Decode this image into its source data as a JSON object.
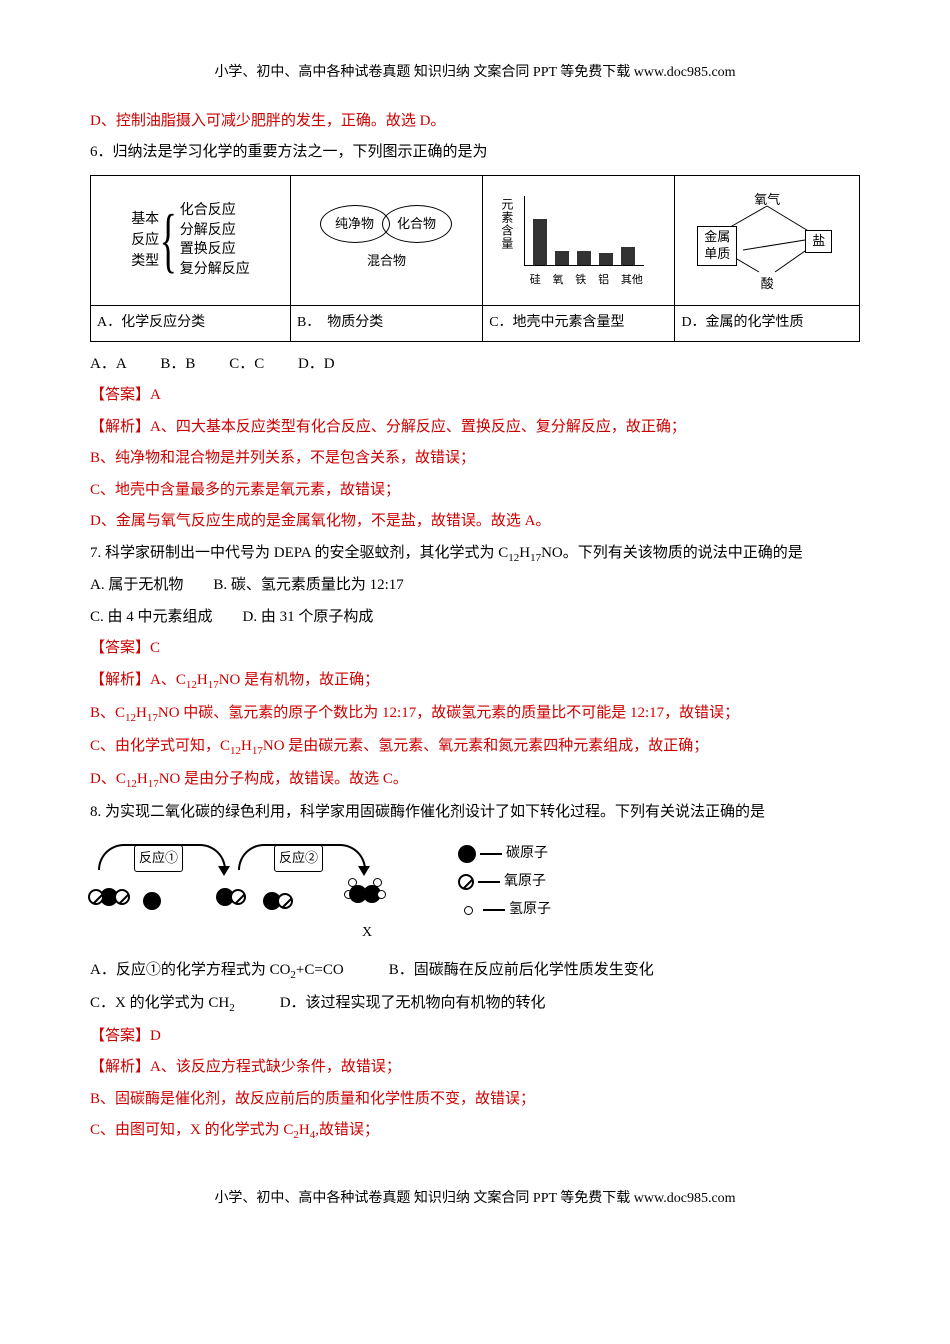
{
  "header": "小学、初中、高中各种试卷真题 知识归纳 文案合同 PPT 等免费下载  www.doc985.com",
  "footer": "小学、初中、高中各种试卷真题 知识归纳 文案合同 PPT 等免费下载  www.doc985.com",
  "q5d": "D、控制油脂摄入可减少肥胖的发生，正确。故选 D。",
  "q6": {
    "stem": "6．归纳法是学习化学的重要方法之一，下列图示正确的是为",
    "row2": {
      "a": "A．化学反应分类",
      "b": "B．　物质分类",
      "c": "C．地壳中元素含量型",
      "d": "D．金属的化学性质"
    },
    "diagA": {
      "left1": "基本",
      "left2": "反应",
      "left3": "类型",
      "r1": "化合反应",
      "r2": "分解反应",
      "r3": "置换反应",
      "r4": "复分解反应"
    },
    "diagB": {
      "oval1": "纯净物",
      "oval2": "化合物",
      "below": "混合物"
    },
    "diagC": {
      "ylabel": "元素含量",
      "bars": [
        {
          "label": "硅",
          "h": 46
        },
        {
          "label": "氧",
          "h": 14
        },
        {
          "label": "铁",
          "h": 14
        },
        {
          "label": "铝",
          "h": 12
        },
        {
          "label": "其他",
          "h": 18
        }
      ]
    },
    "diagD": {
      "top": "氧气",
      "left1": "金属",
      "left2": "单质",
      "right": "盐",
      "bottom": "酸"
    },
    "choices": {
      "a": "A．A",
      "b": "B．B",
      "c": "C．C",
      "d": "D．D"
    },
    "ans": "【答案】A",
    "exp1": "【解析】A、四大基本反应类型有化合反应、分解反应、置换反应、复分解反应，故正确；",
    "exp2": "B、纯净物和混合物是并列关系，不是包含关系，故错误；",
    "exp3": "C、地壳中含量最多的元素是氧元素，故错误；",
    "exp4": "D、金属与氧气反应生成的是金属氧化物，不是盐，故错误。故选 A。"
  },
  "q7": {
    "stem_a": "7. 科学家研制出一中代号为 DEPA 的安全驱蚊剂，其化学式为 C",
    "stem_b": "H",
    "stem_c": "NO。下列有关该物质的说法中正确的是",
    "optA": "A. 属于无机物",
    "optB": "B. 碳、氢元素质量比为 12:17",
    "optC": "C. 由 4 中元素组成",
    "optD": "D. 由 31 个原子构成",
    "ans": "【答案】C",
    "exp1a": "【解析】A、C",
    "exp1b": "H",
    "exp1c": "NO 是有机物，故正确；",
    "exp2a": "B、C",
    "exp2b": "H",
    "exp2c": "NO 中碳、氢元素的原子个数比为 12:17，故碳氢元素的质量比不可能是 12:17，故错误；",
    "exp3a": "C、由化学式可知，C",
    "exp3b": "H",
    "exp3c": "NO 是由碳元素、氢元素、氧元素和氮元素四种元素组成，故正确；",
    "exp4a": "D、C",
    "exp4b": "H",
    "exp4c": "NO 是由分子构成，故错误。故选 C。"
  },
  "q8": {
    "stem": "8. 为实现二氧化碳的绿色利用，科学家用固碳酶作催化剂设计了如下转化过程。下列有关说法正确的是",
    "arc1": "反应①",
    "arc2": "反应②",
    "xlabel": "X",
    "legend": {
      "c": "碳原子",
      "o": "氧原子",
      "h": "氢原子"
    },
    "optA_a": "A．反应①的化学方程式为 CO",
    "optA_b": "+C=CO",
    "optB": "B．固碳酶在反应前后化学性质发生变化",
    "optC_a": "C．X 的化学式为 CH",
    "optD": "D．该过程实现了无机物向有机物的转化",
    "ans": "【答案】D",
    "exp1": "【解析】A、该反应方程式缺少条件，故错误；",
    "exp2": "B、固碳酶是催化剂，故反应前后的质量和化学性质不变，故错误；",
    "exp3a": "C、由图可知，X 的化学式为 C",
    "exp3b": "H",
    "exp3c": ",故错误；"
  }
}
